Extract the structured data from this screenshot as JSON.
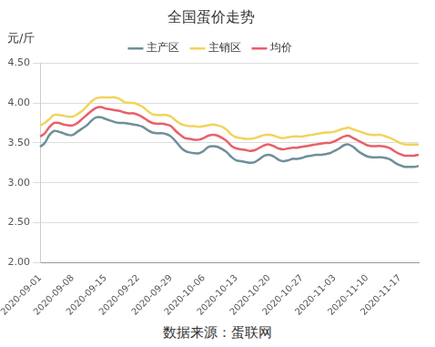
{
  "chart_data": {
    "type": "line",
    "title": "全国蛋价走势",
    "y_label": "元/斤",
    "source": "数据来源：蛋联网",
    "categories": [
      "2020-09-01",
      null,
      null,
      null,
      null,
      null,
      null,
      "2020-09-08",
      null,
      null,
      null,
      null,
      null,
      null,
      "2020-09-15",
      null,
      null,
      null,
      null,
      null,
      null,
      "2020-09-22",
      null,
      null,
      null,
      null,
      null,
      null,
      "2020-09-29",
      null,
      null,
      null,
      null,
      null,
      null,
      "2020-10-06",
      null,
      null,
      null,
      null,
      null,
      null,
      "2020-10-13",
      null,
      null,
      null,
      null,
      null,
      null,
      "2020-10-20",
      null,
      null,
      null,
      null,
      null,
      null,
      "2020-10-27",
      null,
      null,
      null,
      null,
      null,
      null,
      "2020-11-03",
      null,
      null,
      null,
      null,
      null,
      null,
      "2020-11-10",
      null,
      null,
      null,
      null,
      null,
      null,
      "2020-11-17",
      null,
      null,
      null,
      null
    ],
    "series": [
      {
        "name": "主产区",
        "color": "#6e8f9a",
        "values": [
          3.45,
          3.5,
          3.6,
          3.65,
          3.64,
          3.62,
          3.6,
          3.6,
          3.64,
          3.68,
          3.72,
          3.78,
          3.82,
          3.82,
          3.8,
          3.78,
          3.76,
          3.75,
          3.75,
          3.74,
          3.73,
          3.72,
          3.7,
          3.66,
          3.63,
          3.62,
          3.62,
          3.61,
          3.58,
          3.52,
          3.45,
          3.4,
          3.38,
          3.37,
          3.37,
          3.4,
          3.45,
          3.46,
          3.45,
          3.42,
          3.38,
          3.32,
          3.28,
          3.27,
          3.26,
          3.25,
          3.26,
          3.3,
          3.34,
          3.35,
          3.33,
          3.29,
          3.27,
          3.28,
          3.3,
          3.3,
          3.31,
          3.33,
          3.34,
          3.35,
          3.35,
          3.36,
          3.37,
          3.4,
          3.43,
          3.47,
          3.48,
          3.45,
          3.4,
          3.36,
          3.33,
          3.32,
          3.32,
          3.32,
          3.31,
          3.29,
          3.25,
          3.22,
          3.2,
          3.2,
          3.2,
          3.21
        ]
      },
      {
        "name": "主销区",
        "color": "#f2d35b",
        "values": [
          3.72,
          3.75,
          3.8,
          3.85,
          3.85,
          3.84,
          3.83,
          3.83,
          3.86,
          3.9,
          3.96,
          4.02,
          4.06,
          4.07,
          4.07,
          4.07,
          4.07,
          4.05,
          4.01,
          4.0,
          4.0,
          3.98,
          3.95,
          3.9,
          3.86,
          3.85,
          3.85,
          3.85,
          3.83,
          3.78,
          3.74,
          3.72,
          3.71,
          3.71,
          3.7,
          3.71,
          3.72,
          3.73,
          3.72,
          3.7,
          3.66,
          3.6,
          3.57,
          3.56,
          3.55,
          3.55,
          3.56,
          3.58,
          3.6,
          3.6,
          3.59,
          3.57,
          3.56,
          3.57,
          3.58,
          3.58,
          3.58,
          3.59,
          3.6,
          3.61,
          3.62,
          3.63,
          3.63,
          3.64,
          3.66,
          3.68,
          3.69,
          3.67,
          3.65,
          3.63,
          3.61,
          3.6,
          3.6,
          3.6,
          3.58,
          3.56,
          3.53,
          3.5,
          3.48,
          3.48,
          3.48,
          3.48
        ]
      },
      {
        "name": "均价",
        "color": "#e8606a",
        "values": [
          3.58,
          3.62,
          3.7,
          3.75,
          3.75,
          3.73,
          3.72,
          3.72,
          3.75,
          3.8,
          3.85,
          3.9,
          3.94,
          3.95,
          3.93,
          3.92,
          3.91,
          3.9,
          3.88,
          3.87,
          3.87,
          3.85,
          3.82,
          3.78,
          3.75,
          3.74,
          3.74,
          3.73,
          3.71,
          3.65,
          3.6,
          3.56,
          3.55,
          3.54,
          3.54,
          3.56,
          3.59,
          3.6,
          3.59,
          3.56,
          3.52,
          3.46,
          3.43,
          3.42,
          3.41,
          3.4,
          3.41,
          3.44,
          3.47,
          3.48,
          3.46,
          3.43,
          3.42,
          3.43,
          3.44,
          3.44,
          3.45,
          3.46,
          3.47,
          3.48,
          3.49,
          3.5,
          3.5,
          3.52,
          3.55,
          3.58,
          3.59,
          3.56,
          3.53,
          3.5,
          3.47,
          3.46,
          3.46,
          3.46,
          3.45,
          3.43,
          3.39,
          3.36,
          3.34,
          3.34,
          3.34,
          3.35
        ]
      }
    ],
    "ylim": [
      2,
      4.5
    ],
    "yticks": [
      {
        "value": 2,
        "label": "2.00"
      },
      {
        "value": 2.5,
        "label": "2.50"
      },
      {
        "value": 3,
        "label": "3.00"
      },
      {
        "value": 3.5,
        "label": "3.50"
      },
      {
        "value": 4,
        "label": "4.00"
      },
      {
        "value": 4.5,
        "label": "4.50"
      }
    ],
    "grid": true,
    "legend": "top"
  }
}
